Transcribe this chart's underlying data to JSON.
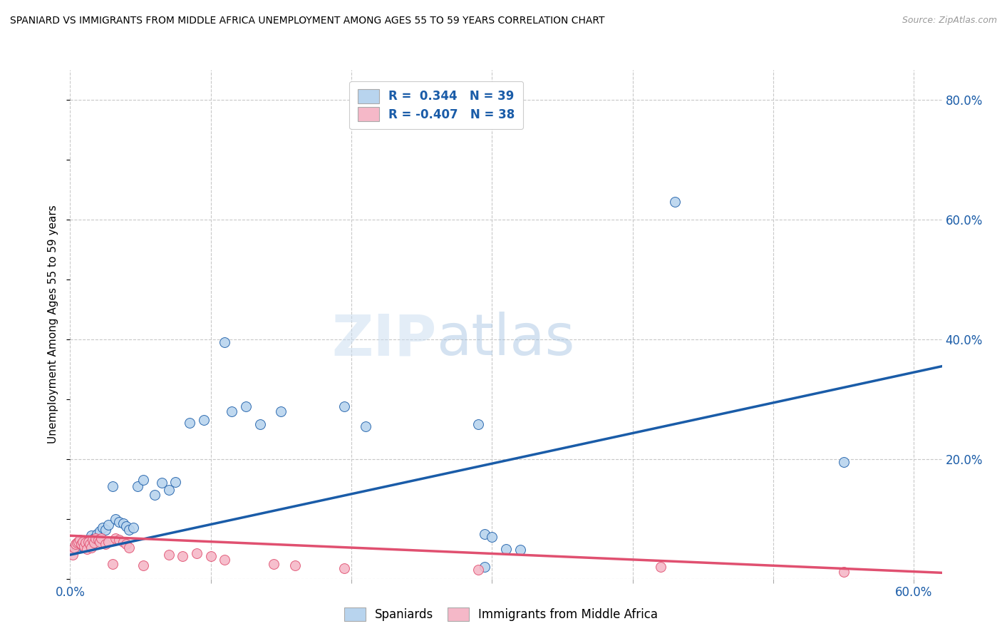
{
  "title": "SPANIARD VS IMMIGRANTS FROM MIDDLE AFRICA UNEMPLOYMENT AMONG AGES 55 TO 59 YEARS CORRELATION CHART",
  "source": "Source: ZipAtlas.com",
  "ylabel": "Unemployment Among Ages 55 to 59 years",
  "xlim": [
    0.0,
    0.62
  ],
  "ylim": [
    0.0,
    0.85
  ],
  "xticks": [
    0.0,
    0.1,
    0.2,
    0.3,
    0.4,
    0.5,
    0.6
  ],
  "xticklabels": [
    "0.0%",
    "",
    "",
    "",
    "",
    "",
    "60.0%"
  ],
  "ytick_positions": [
    0.0,
    0.2,
    0.4,
    0.6,
    0.8
  ],
  "yticklabels_right": [
    "",
    "20.0%",
    "40.0%",
    "60.0%",
    "80.0%"
  ],
  "background_color": "#ffffff",
  "grid_color": "#c8c8c8",
  "watermark_zip": "ZIP",
  "watermark_atlas": "atlas",
  "spaniards_color": "#b8d4ee",
  "immigrants_color": "#f5b8c8",
  "trendline_spaniards_color": "#1a5ca8",
  "trendline_immigrants_color": "#e05070",
  "spaniards_scatter": [
    [
      0.002,
      0.05
    ],
    [
      0.003,
      0.048
    ],
    [
      0.005,
      0.052
    ],
    [
      0.006,
      0.058
    ],
    [
      0.007,
      0.062
    ],
    [
      0.009,
      0.055
    ],
    [
      0.011,
      0.06
    ],
    [
      0.013,
      0.065
    ],
    [
      0.015,
      0.072
    ],
    [
      0.017,
      0.068
    ],
    [
      0.019,
      0.075
    ],
    [
      0.021,
      0.08
    ],
    [
      0.023,
      0.085
    ],
    [
      0.025,
      0.082
    ],
    [
      0.027,
      0.09
    ],
    [
      0.03,
      0.155
    ],
    [
      0.032,
      0.1
    ],
    [
      0.035,
      0.095
    ],
    [
      0.038,
      0.092
    ],
    [
      0.04,
      0.088
    ],
    [
      0.042,
      0.082
    ],
    [
      0.045,
      0.085
    ],
    [
      0.048,
      0.155
    ],
    [
      0.052,
      0.165
    ],
    [
      0.06,
      0.14
    ],
    [
      0.065,
      0.16
    ],
    [
      0.07,
      0.148
    ],
    [
      0.075,
      0.162
    ],
    [
      0.085,
      0.26
    ],
    [
      0.095,
      0.265
    ],
    [
      0.11,
      0.395
    ],
    [
      0.115,
      0.28
    ],
    [
      0.125,
      0.288
    ],
    [
      0.135,
      0.258
    ],
    [
      0.15,
      0.28
    ],
    [
      0.195,
      0.288
    ],
    [
      0.21,
      0.255
    ],
    [
      0.29,
      0.258
    ],
    [
      0.295,
      0.075
    ],
    [
      0.3,
      0.07
    ],
    [
      0.31,
      0.05
    ],
    [
      0.32,
      0.048
    ],
    [
      0.295,
      0.02
    ],
    [
      0.43,
      0.63
    ],
    [
      0.55,
      0.195
    ]
  ],
  "immigrants_scatter": [
    [
      0.002,
      0.04
    ],
    [
      0.003,
      0.052
    ],
    [
      0.004,
      0.058
    ],
    [
      0.005,
      0.06
    ],
    [
      0.006,
      0.062
    ],
    [
      0.007,
      0.065
    ],
    [
      0.008,
      0.058
    ],
    [
      0.009,
      0.062
    ],
    [
      0.01,
      0.055
    ],
    [
      0.011,
      0.06
    ],
    [
      0.012,
      0.05
    ],
    [
      0.013,
      0.062
    ],
    [
      0.014,
      0.058
    ],
    [
      0.015,
      0.052
    ],
    [
      0.016,
      0.065
    ],
    [
      0.017,
      0.06
    ],
    [
      0.018,
      0.068
    ],
    [
      0.02,
      0.065
    ],
    [
      0.021,
      0.062
    ],
    [
      0.022,
      0.068
    ],
    [
      0.025,
      0.058
    ],
    [
      0.027,
      0.062
    ],
    [
      0.03,
      0.025
    ],
    [
      0.032,
      0.068
    ],
    [
      0.035,
      0.065
    ],
    [
      0.038,
      0.062
    ],
    [
      0.04,
      0.058
    ],
    [
      0.042,
      0.052
    ],
    [
      0.052,
      0.022
    ],
    [
      0.07,
      0.04
    ],
    [
      0.08,
      0.038
    ],
    [
      0.09,
      0.042
    ],
    [
      0.1,
      0.038
    ],
    [
      0.11,
      0.032
    ],
    [
      0.145,
      0.025
    ],
    [
      0.16,
      0.022
    ],
    [
      0.195,
      0.018
    ],
    [
      0.29,
      0.015
    ],
    [
      0.42,
      0.02
    ],
    [
      0.55,
      0.012
    ]
  ],
  "trendline_spaniards": {
    "x_start": 0.0,
    "y_start": 0.04,
    "x_end": 0.62,
    "y_end": 0.355
  },
  "trendline_immigrants": {
    "x_start": 0.0,
    "y_start": 0.072,
    "x_end": 0.62,
    "y_end": 0.01
  }
}
